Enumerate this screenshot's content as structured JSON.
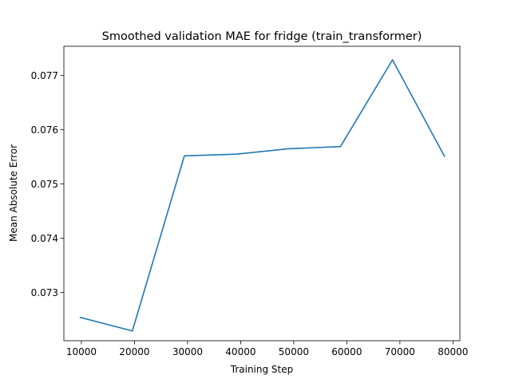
{
  "chart_data": {
    "type": "line",
    "title": "Smoothed validation MAE for fridge (train_transformer)",
    "xlabel": "Training Step",
    "ylabel": "Mean Absolute Error",
    "xlim": [
      6700,
      81300
    ],
    "ylim": [
      0.07211,
      0.07754
    ],
    "xticks": [
      10000,
      20000,
      30000,
      40000,
      50000,
      60000,
      70000,
      80000
    ],
    "xtick_labels": [
      "10000",
      "20000",
      "30000",
      "40000",
      "50000",
      "60000",
      "70000",
      "80000"
    ],
    "yticks": [
      0.073,
      0.074,
      0.075,
      0.076,
      0.077
    ],
    "ytick_labels": [
      "0.073",
      "0.074",
      "0.075",
      "0.076",
      "0.077"
    ],
    "grid": false,
    "legend": "none",
    "series": [
      {
        "color": "#1f77b4",
        "x": [
          9800,
          19600,
          29400,
          39200,
          49000,
          58800,
          68600,
          78400
        ],
        "y": [
          0.07254,
          0.07229,
          0.07552,
          0.07555,
          0.07565,
          0.07569,
          0.07729,
          0.07551
        ]
      }
    ]
  }
}
